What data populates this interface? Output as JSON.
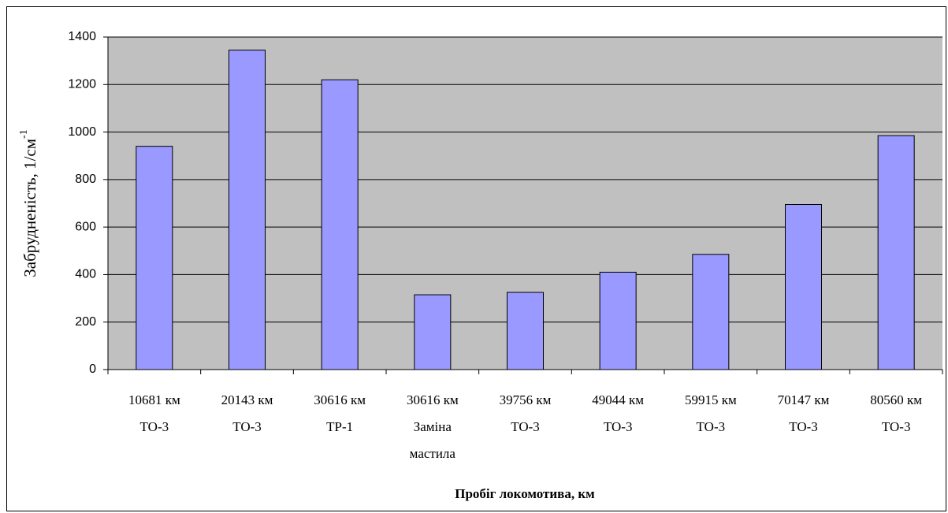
{
  "chart_data": {
    "type": "bar",
    "categories": [
      [
        "10681 км",
        "ТО-3"
      ],
      [
        "20143 км",
        "ТО-3"
      ],
      [
        "30616 км",
        "ТР-1"
      ],
      [
        "30616 км",
        "Заміна",
        "мастила"
      ],
      [
        "39756 км",
        "ТО-3"
      ],
      [
        "49044 км",
        "ТО-3"
      ],
      [
        "59915 км",
        "ТО-3"
      ],
      [
        "70147 км",
        "ТО-3"
      ],
      [
        "80560 км",
        "ТО-3"
      ]
    ],
    "values": [
      940,
      1345,
      1220,
      315,
      325,
      410,
      485,
      695,
      985
    ],
    "color": "#9999ff",
    "ylim": [
      0,
      1400
    ],
    "yticks": [
      0,
      200,
      400,
      600,
      800,
      1000,
      1200,
      1400
    ],
    "grid": true,
    "y_label": "Забрудненість, 1/см",
    "y_label_superscript": "-1",
    "x_label": "Пробіг локомотива, км"
  }
}
